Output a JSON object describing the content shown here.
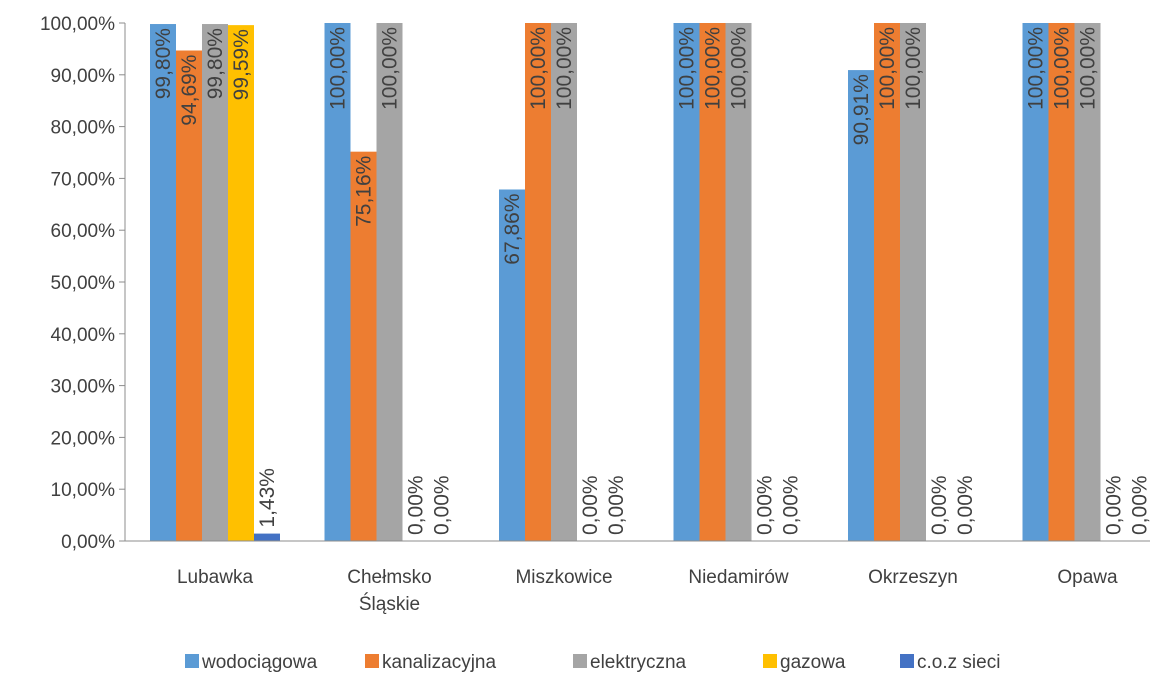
{
  "chart_data": {
    "type": "bar",
    "categories": [
      "Lubawka",
      "Chełmsko Śląskie",
      "Miszkowice",
      "Niedamirów",
      "Okrzeszyn",
      "Opawa"
    ],
    "category_lines": [
      [
        "Lubawka"
      ],
      [
        "Chełmsko",
        "Śląskie"
      ],
      [
        "Miszkowice"
      ],
      [
        "Niedamirów"
      ],
      [
        "Okrzeszyn"
      ],
      [
        "Opawa"
      ]
    ],
    "series": [
      {
        "name": "wodociągowa",
        "color": "#5B9BD5",
        "values": [
          99.8,
          100.0,
          67.86,
          100.0,
          90.91,
          100.0
        ],
        "labels": [
          "99,80%",
          "100,00%",
          "67,86%",
          "100,00%",
          "90,91%",
          "100,00%"
        ]
      },
      {
        "name": "kanalizacyjna",
        "color": "#ED7D31",
        "values": [
          94.69,
          75.16,
          100.0,
          100.0,
          100.0,
          100.0
        ],
        "labels": [
          "94,69%",
          "75,16%",
          "100,00%",
          "100,00%",
          "100,00%",
          "100,00%"
        ]
      },
      {
        "name": "elektryczna",
        "color": "#A5A5A5",
        "values": [
          99.8,
          100.0,
          100.0,
          100.0,
          100.0,
          100.0
        ],
        "labels": [
          "99,80%",
          "100,00%",
          "100,00%",
          "100,00%",
          "100,00%",
          "100,00%"
        ]
      },
      {
        "name": "gazowa",
        "color": "#FFC000",
        "values": [
          99.59,
          0.0,
          0.0,
          0.0,
          0.0,
          0.0
        ],
        "labels": [
          "99,59%",
          "0,00%",
          "0,00%",
          "0,00%",
          "0,00%",
          "0,00%"
        ]
      },
      {
        "name": "c.o.z sieci",
        "color": "#4472C4",
        "values": [
          1.43,
          0.0,
          0.0,
          0.0,
          0.0,
          0.0
        ],
        "labels": [
          "1,43%",
          "0,00%",
          "0,00%",
          "0,00%",
          "0,00%",
          "0,00%"
        ]
      }
    ],
    "ylim": [
      0,
      100
    ],
    "yticks": [
      0,
      10,
      20,
      30,
      40,
      50,
      60,
      70,
      80,
      90,
      100
    ],
    "ytick_labels": [
      "0,00%",
      "10,00%",
      "20,00%",
      "30,00%",
      "40,00%",
      "50,00%",
      "60,00%",
      "70,00%",
      "80,00%",
      "90,00%",
      "100,00%"
    ],
    "title": "",
    "xlabel": "",
    "ylabel": "",
    "grid": false,
    "legend_position": "bottom",
    "data_labels": "inside-end-rotated"
  }
}
